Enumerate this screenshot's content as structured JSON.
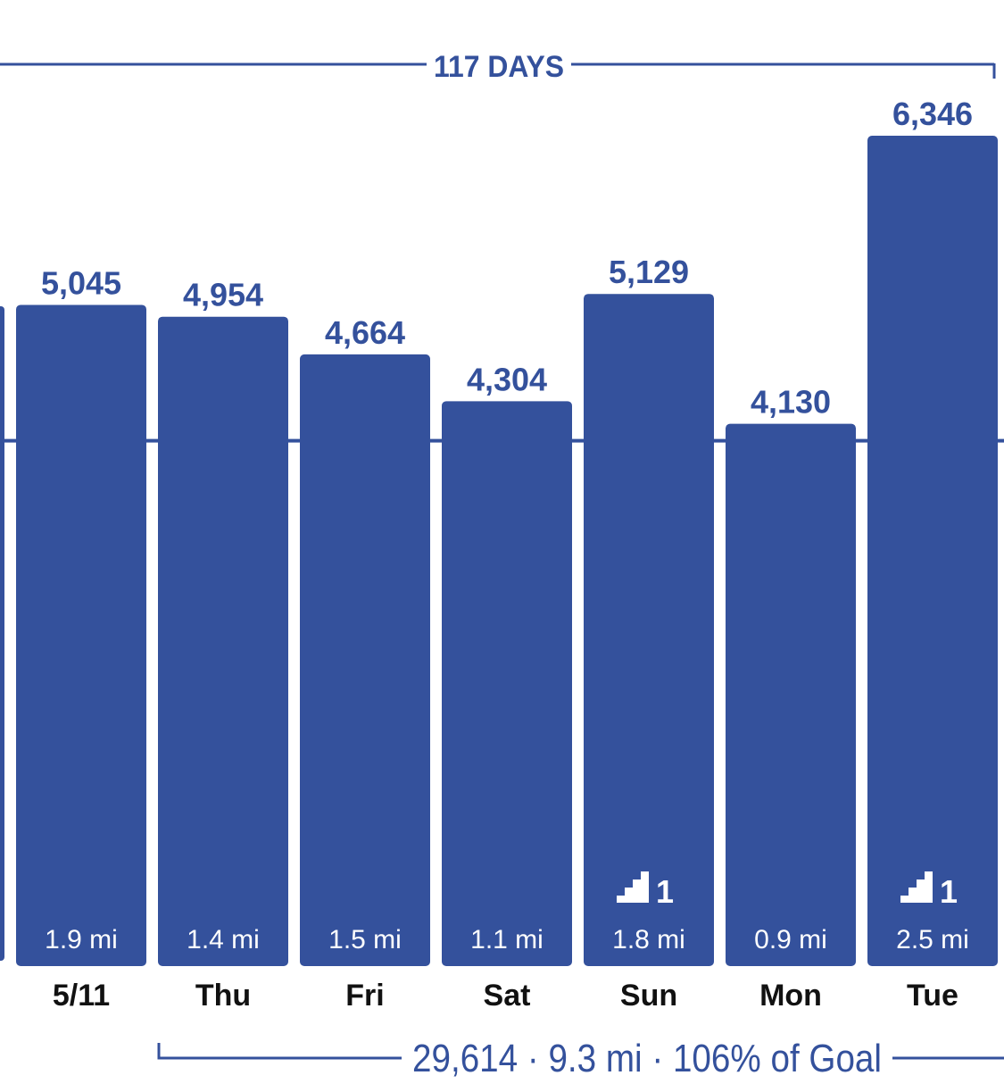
{
  "header": {
    "streak_label": "117 DAYS"
  },
  "footer": {
    "summary": "29,614 · 9.3 mi · 106% of Goal"
  },
  "colors": {
    "bar": "#34519c",
    "text": "#34519c",
    "axis_label": "#111111",
    "bar_text": "#ffffff",
    "background": "#ffffff"
  },
  "chart_data": {
    "type": "bar",
    "categories": [
      "5/11",
      "Thu",
      "Fri",
      "Sat",
      "Sun",
      "Mon",
      "Tue"
    ],
    "values": [
      5045,
      4954,
      4664,
      4304,
      5129,
      4130,
      6346
    ],
    "value_labels": [
      "5,045",
      "4,954",
      "4,664",
      "4,304",
      "5,129",
      "4,130",
      "6,346"
    ],
    "distance_labels": [
      "1.9 mi",
      "1.4 mi",
      "1.5 mi",
      "1.1 mi",
      "1.8 mi",
      "0.9 mi",
      "2.5 mi"
    ],
    "flights": [
      null,
      null,
      null,
      null,
      "1",
      null,
      "1"
    ],
    "flights_icon": "stairs-icon",
    "goal_line": 4000,
    "partial_bar_left": true,
    "grid": false,
    "legend": "none"
  }
}
